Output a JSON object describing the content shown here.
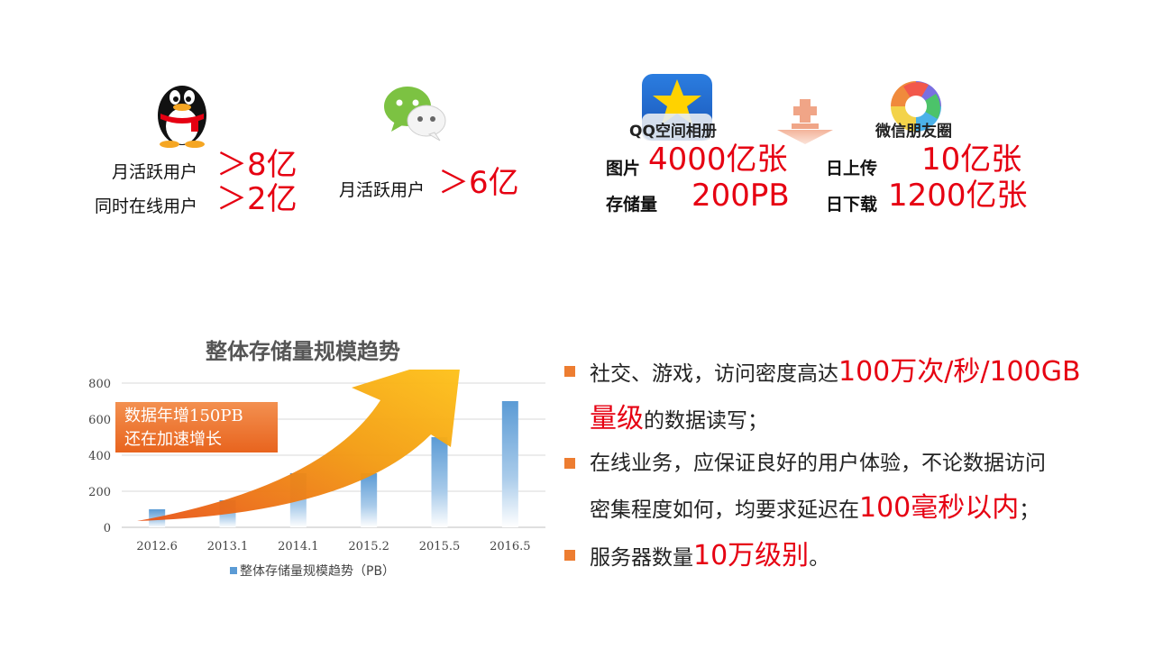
{
  "qq": {
    "line1_label": "月活跃用户",
    "line1_value": "＞8亿",
    "line2_label": "同时在线用户",
    "line2_value": "＞2亿"
  },
  "wechat": {
    "label": "月活跃用户",
    "value": "＞6亿"
  },
  "qzone_album": {
    "title": "QQ空间相册",
    "photos_label": "图片",
    "photos_value": "4000亿张",
    "storage_label": "存储量",
    "storage_value": "200PB"
  },
  "moments": {
    "title": "微信朋友圈",
    "upload_label": "日上传",
    "upload_value": "10亿张",
    "download_label": "日下载",
    "download_value": "1200亿张"
  },
  "callout": {
    "line1": "数据年增150PB",
    "line2": "还在加速增长"
  },
  "bullets": {
    "b1_pre": "社交、游戏，访问密度高达",
    "b1_hl": "100万次/秒/100GB",
    "b1_hl2": "量级",
    "b1_post": "的数据读写；",
    "b2_line1": "在线业务，应保证良好的用户体验，不论数据访问",
    "b2_pre": "密集程度如何，均要求延迟在",
    "b2_hl": "100毫秒以内",
    "b2_post": "；",
    "b3_pre": "服务器数量",
    "b3_hl": "10万级别",
    "b3_post": "。"
  },
  "colors": {
    "accent_red": "#e60012",
    "bar_blue": "#5b9bd5",
    "bullet_orange": "#ed7d31",
    "arrow_orange": "#f39c12"
  },
  "chart_data": {
    "type": "bar",
    "title": "整体存储量规模趋势",
    "categories": [
      "2012.6",
      "2013.1",
      "2014.1",
      "2015.2",
      "2015.5",
      "2016.5"
    ],
    "series": [
      {
        "name": "整体存储量规模趋势（PB）",
        "values": [
          100,
          150,
          300,
          300,
          500,
          700
        ]
      }
    ],
    "y_ticks": [
      0,
      200,
      400,
      600,
      800
    ],
    "ylim": [
      0,
      800
    ],
    "grid": true,
    "legend": "bottom"
  }
}
